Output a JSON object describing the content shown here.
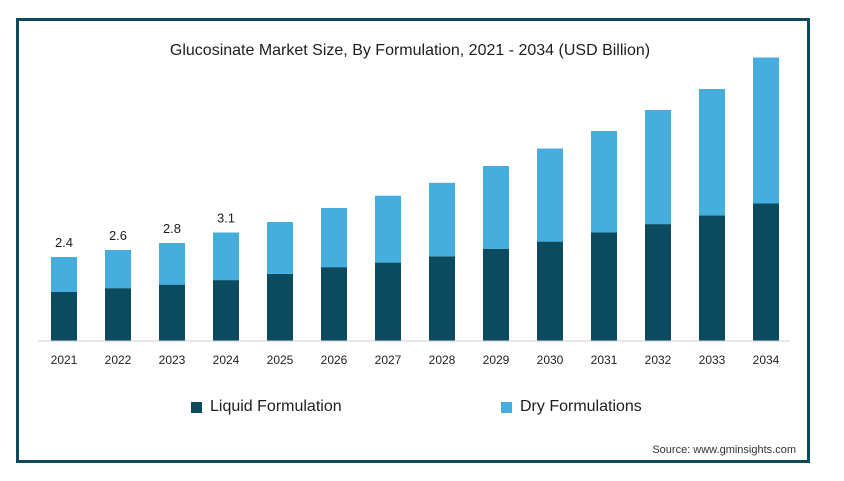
{
  "chart_data": {
    "type": "bar",
    "stacked": true,
    "title": "Glucosinate Market Size, By Formulation, 2021 - 2034 (USD Billion)",
    "categories": [
      "2021",
      "2022",
      "2023",
      "2024",
      "2025",
      "2026",
      "2027",
      "2028",
      "2029",
      "2030",
      "2031",
      "2032",
      "2033",
      "2034"
    ],
    "series": [
      {
        "name": "Liquid Formulation",
        "color": "#0b4a5f",
        "values": [
          1.4,
          1.51,
          1.61,
          1.74,
          1.92,
          2.11,
          2.24,
          2.42,
          2.63,
          2.84,
          3.1,
          3.34,
          3.59,
          3.93
        ]
      },
      {
        "name": "Dry Formulations",
        "color": "#45aede",
        "values": [
          1.0,
          1.09,
          1.19,
          1.36,
          1.48,
          1.69,
          1.91,
          2.1,
          2.37,
          2.66,
          2.9,
          3.26,
          3.61,
          4.17
        ]
      }
    ],
    "totals_labels": [
      "2.4",
      "2.6",
      "2.8",
      "3.1",
      "",
      "",
      "",
      "",
      "",
      "",
      "",
      "",
      "",
      ""
    ],
    "ylim": [
      0,
      8.6
    ],
    "grid": false,
    "legend_position": "bottom"
  },
  "legend": {
    "liquid_label": "Liquid Formulation",
    "dry_label": "Dry Formulations"
  },
  "source": "Source: www.gminsights.com"
}
